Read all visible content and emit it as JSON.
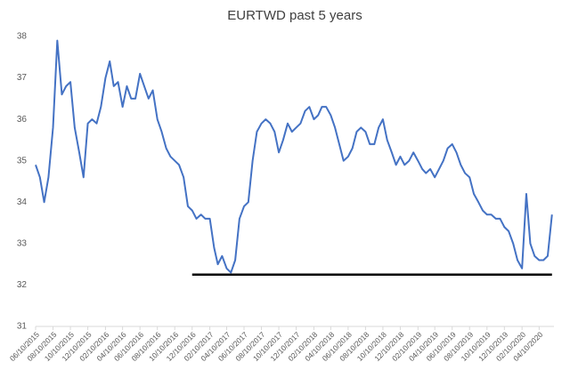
{
  "chart_data": {
    "type": "line",
    "title": "EURTWD past 5 years",
    "x": [
      "06/10/2015",
      "06/25/2015",
      "07/10/2015",
      "07/25/2015",
      "08/10/2015",
      "08/25/2015",
      "09/10/2015",
      "09/25/2015",
      "10/10/2015",
      "10/25/2015",
      "11/10/2015",
      "11/25/2015",
      "12/10/2015",
      "12/25/2015",
      "01/10/2016",
      "01/25/2016",
      "02/10/2016",
      "02/25/2016",
      "03/10/2016",
      "03/25/2016",
      "04/10/2016",
      "04/25/2016",
      "05/10/2016",
      "05/25/2016",
      "06/10/2016",
      "06/25/2016",
      "07/10/2016",
      "07/25/2016",
      "08/10/2016",
      "08/25/2016",
      "09/10/2016",
      "09/25/2016",
      "10/10/2016",
      "10/25/2016",
      "11/10/2016",
      "11/25/2016",
      "12/10/2016",
      "12/25/2016",
      "01/10/2017",
      "01/25/2017",
      "02/10/2017",
      "02/25/2017",
      "03/10/2017",
      "03/25/2017",
      "04/10/2017",
      "04/25/2017",
      "05/10/2017",
      "05/25/2017",
      "06/10/2017",
      "06/25/2017",
      "07/10/2017",
      "07/25/2017",
      "08/10/2017",
      "08/25/2017",
      "09/10/2017",
      "09/25/2017",
      "10/10/2017",
      "10/25/2017",
      "11/10/2017",
      "11/25/2017",
      "12/10/2017",
      "12/25/2017",
      "01/10/2018",
      "01/25/2018",
      "02/10/2018",
      "02/25/2018",
      "03/10/2018",
      "03/25/2018",
      "04/10/2018",
      "04/25/2018",
      "05/10/2018",
      "05/25/2018",
      "06/10/2018",
      "06/25/2018",
      "07/10/2018",
      "07/25/2018",
      "08/10/2018",
      "08/25/2018",
      "09/10/2018",
      "09/25/2018",
      "10/10/2018",
      "10/25/2018",
      "11/10/2018",
      "11/25/2018",
      "12/10/2018",
      "12/25/2018",
      "01/10/2019",
      "01/25/2019",
      "02/10/2019",
      "02/25/2019",
      "03/10/2019",
      "03/25/2019",
      "04/10/2019",
      "04/25/2019",
      "05/10/2019",
      "05/25/2019",
      "06/10/2019",
      "06/25/2019",
      "07/10/2019",
      "07/25/2019",
      "08/10/2019",
      "08/25/2019",
      "09/10/2019",
      "09/25/2019",
      "10/10/2019",
      "10/25/2019",
      "11/10/2019",
      "11/25/2019",
      "12/10/2019",
      "12/25/2019",
      "01/10/2020",
      "01/25/2020",
      "02/10/2020",
      "02/25/2020",
      "03/10/2020",
      "03/25/2020",
      "04/10/2020",
      "04/25/2020",
      "05/10/2020",
      "05/25/2020"
    ],
    "series": [
      {
        "name": "EURTWD",
        "color": "#4472c4",
        "values": [
          34.9,
          34.6,
          34.0,
          34.6,
          35.8,
          37.9,
          36.6,
          36.8,
          36.9,
          35.8,
          35.2,
          34.6,
          35.9,
          36.0,
          35.9,
          36.3,
          37.0,
          37.4,
          36.8,
          36.9,
          36.3,
          36.8,
          36.5,
          36.5,
          37.1,
          36.8,
          36.5,
          36.7,
          36.0,
          35.7,
          35.3,
          35.1,
          35.0,
          34.9,
          34.6,
          33.9,
          33.8,
          33.6,
          33.7,
          33.6,
          33.6,
          32.9,
          32.5,
          32.7,
          32.4,
          32.3,
          32.6,
          33.6,
          33.9,
          34.0,
          35.0,
          35.7,
          35.9,
          36.0,
          35.9,
          35.7,
          35.2,
          35.5,
          35.9,
          35.7,
          35.8,
          35.9,
          36.2,
          36.3,
          36.0,
          36.1,
          36.3,
          36.3,
          36.1,
          35.8,
          35.4,
          35.0,
          35.1,
          35.3,
          35.7,
          35.8,
          35.7,
          35.4,
          35.4,
          35.8,
          36.0,
          35.5,
          35.2,
          34.9,
          35.1,
          34.9,
          35.0,
          35.2,
          35.0,
          34.8,
          34.7,
          34.8,
          34.6,
          34.8,
          35.0,
          35.3,
          35.4,
          35.2,
          34.9,
          34.7,
          34.6,
          34.2,
          34.0,
          33.8,
          33.7,
          33.7,
          33.6,
          33.6,
          33.4,
          33.3,
          33.0,
          32.6,
          32.4,
          34.2,
          33.0,
          32.7,
          32.6,
          32.6,
          32.7,
          33.7
        ]
      }
    ],
    "xlim": [
      "06/10/2015",
      "06/01/2020"
    ],
    "xticks": [
      "06/10/2015",
      "08/10/2015",
      "10/10/2015",
      "12/10/2015",
      "02/10/2016",
      "04/10/2016",
      "06/10/2016",
      "08/10/2016",
      "10/10/2016",
      "12/10/2016",
      "02/10/2017",
      "04/10/2017",
      "06/10/2017",
      "08/10/2017",
      "10/10/2017",
      "12/10/2017",
      "02/10/2018",
      "04/10/2018",
      "06/10/2018",
      "08/10/2018",
      "10/10/2018",
      "12/10/2018",
      "02/10/2019",
      "04/10/2019",
      "06/10/2019",
      "08/10/2019",
      "10/10/2019",
      "12/10/2019",
      "02/10/2020",
      "04/10/2020"
    ],
    "ylim": [
      31,
      38
    ],
    "yticks": [
      31,
      32,
      33,
      34,
      35,
      36,
      37,
      38
    ],
    "grid": false,
    "reference_line": {
      "y": 32.25,
      "x": [
        "12/10/2016",
        "05/25/2020"
      ],
      "color": "#000000"
    }
  }
}
